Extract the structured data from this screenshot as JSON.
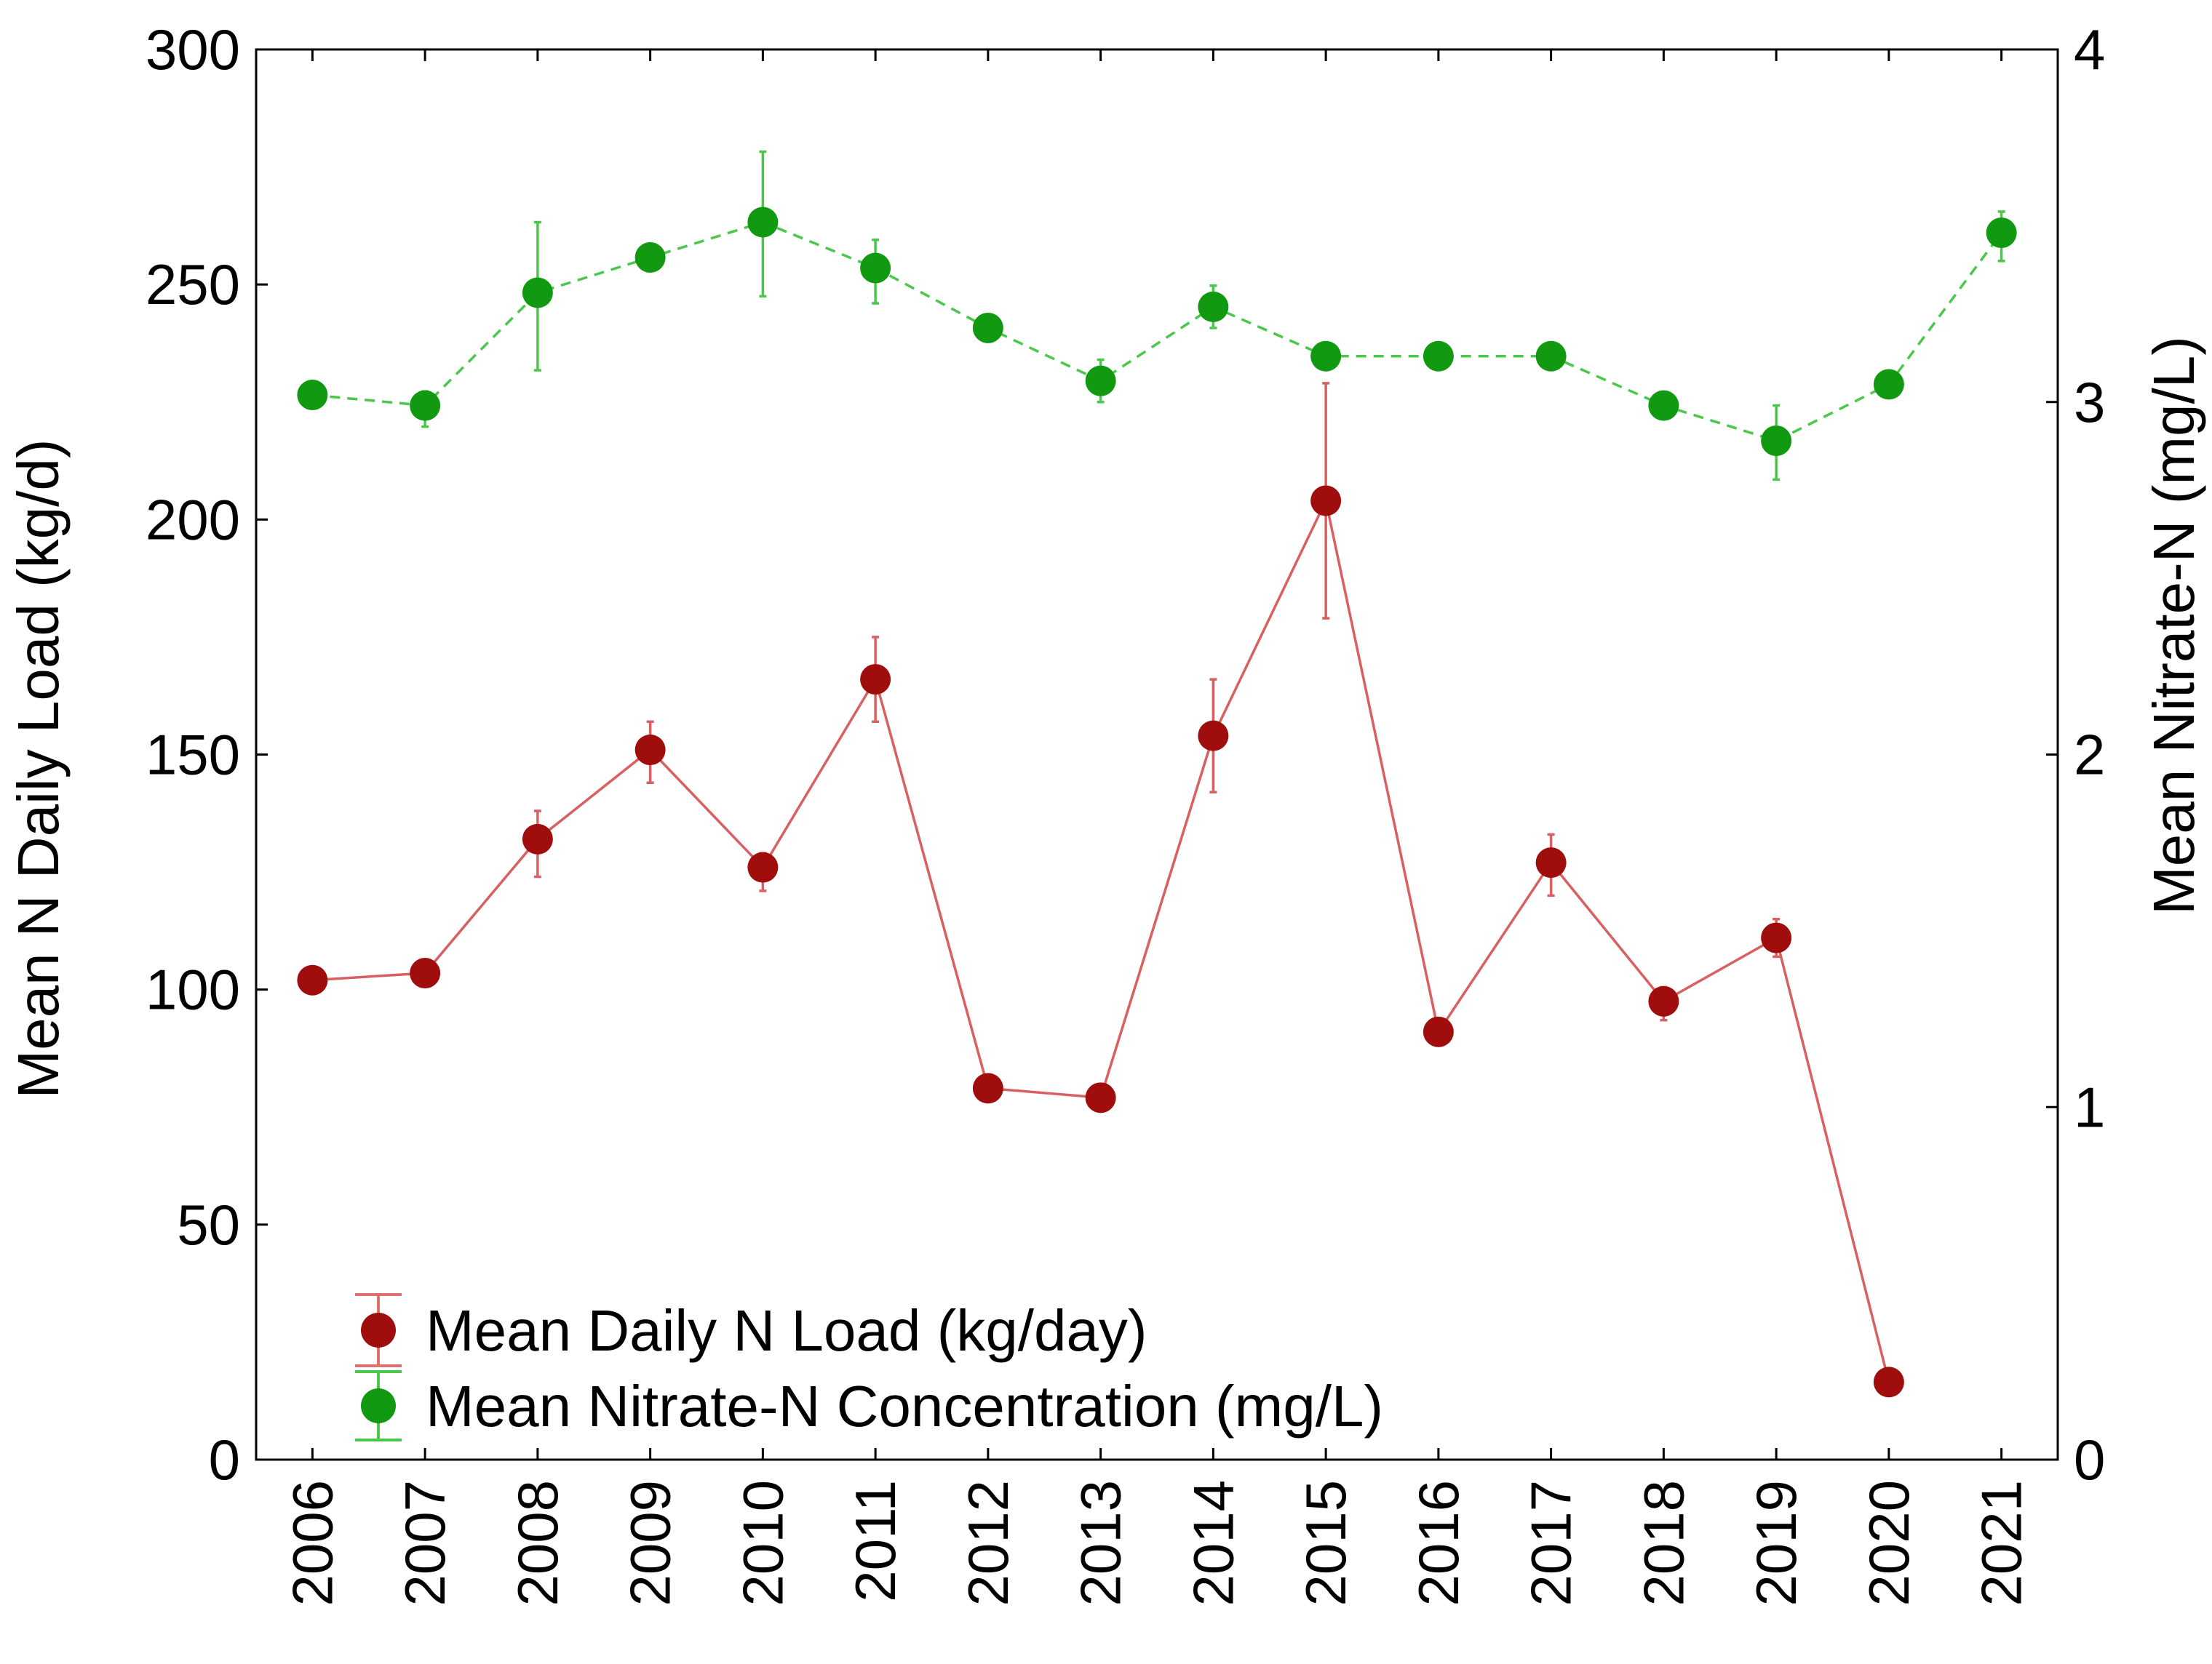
{
  "chart_data": {
    "type": "line",
    "x": [
      "2006",
      "2007",
      "2008",
      "2009",
      "2010",
      "2011",
      "2012",
      "2013",
      "2014",
      "2015",
      "2016",
      "2017",
      "2018",
      "2019",
      "2020",
      "2021"
    ],
    "left_axis": {
      "label": "Mean N Daily Load (kg/d)",
      "ylim": [
        0,
        300
      ],
      "ticks": [
        "0",
        "50",
        "100",
        "150",
        "200",
        "250",
        "300"
      ]
    },
    "right_axis": {
      "label": "Mean Nitrate-N  (mg/L)",
      "ylim": [
        0,
        4
      ],
      "ticks": [
        "0",
        "1",
        "2",
        "3",
        "4"
      ]
    },
    "series": [
      {
        "name": "Mean Daily N Load (kg/day)",
        "axis": "left",
        "color": "#a00d0d",
        "line_color": "#d96060",
        "line_style": "solid",
        "x": [
          "2006",
          "2007",
          "2008",
          "2009",
          "2010",
          "2011",
          "2012",
          "2013",
          "2014",
          "2015",
          "2016",
          "2017",
          "2018",
          "2019",
          "2020"
        ],
        "values": [
          102,
          103.5,
          132,
          151,
          126,
          166,
          79,
          77,
          154,
          204,
          91,
          127,
          97.5,
          111,
          16.5
        ],
        "err_low": [
          2,
          2,
          8,
          7,
          5,
          9,
          2,
          2,
          12,
          25,
          2,
          7,
          4,
          4,
          0
        ],
        "err_high": [
          2,
          2,
          6,
          6,
          3,
          9,
          2,
          2,
          12,
          25,
          2,
          6,
          3,
          4,
          0
        ]
      },
      {
        "name": "Mean Nitrate-N Concentration (mg/L)",
        "axis": "right",
        "color": "#119a11",
        "line_color": "#4bc84b",
        "line_style": "dashed",
        "x": [
          "2006",
          "2007",
          "2008",
          "2009",
          "2010",
          "2011",
          "2012",
          "2013",
          "2014",
          "2015",
          "2016",
          "2017",
          "2018",
          "2019",
          "2020",
          "2021"
        ],
        "values": [
          3.02,
          2.99,
          3.31,
          3.41,
          3.51,
          3.38,
          3.21,
          3.06,
          3.27,
          3.13,
          3.13,
          3.13,
          2.99,
          2.89,
          3.05,
          3.48
        ],
        "err_low": [
          0.02,
          0.06,
          0.22,
          0.02,
          0.21,
          0.1,
          0.03,
          0.06,
          0.06,
          0.03,
          0.03,
          0.03,
          0.03,
          0.11,
          0.03,
          0.08
        ],
        "err_high": [
          0.02,
          0.04,
          0.2,
          0.02,
          0.2,
          0.08,
          0.02,
          0.06,
          0.06,
          0.03,
          0.03,
          0.03,
          0.03,
          0.1,
          0.03,
          0.06
        ]
      }
    ],
    "legend": {
      "position": "lower-left",
      "entries": [
        "Mean Daily N Load (kg/day)",
        "Mean Nitrate-N Concentration (mg/L)"
      ]
    }
  }
}
